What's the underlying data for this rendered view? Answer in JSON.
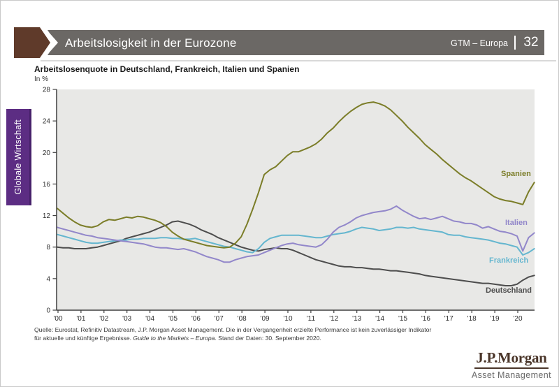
{
  "header": {
    "title": "Arbeitslosigkeit in der Eurozone",
    "edition_label": "GTM – Europa",
    "page_number": "32"
  },
  "sidebar": {
    "tab_label": "Globale Wirtschaft"
  },
  "chart": {
    "title": "Arbeitslosenquote in Deutschland, Frankreich, Italien und Spanien",
    "unit_label": "In %"
  },
  "chart_data": {
    "type": "line",
    "title": "Arbeitslosenquote in Deutschland, Frankreich, Italien und Spanien",
    "ylabel": "In %",
    "ylim": [
      0,
      28
    ],
    "yticks": [
      0,
      4,
      8,
      12,
      16,
      20,
      24,
      28
    ],
    "grid": false,
    "legend_position": "end-of-line-labels",
    "x_start_year": 2000,
    "x_step_years": 0.25,
    "xtick_labels": [
      "'00",
      "'01",
      "'02",
      "'03",
      "'04",
      "'05",
      "'06",
      "'07",
      "'08",
      "'09",
      "'10",
      "'11",
      "'12",
      "'13",
      "'14",
      "'15",
      "'16",
      "'17",
      "'18",
      "'19",
      "'20"
    ],
    "series": [
      {
        "name": "Spanien",
        "color": "#7b7d28",
        "values": [
          12.9,
          12.3,
          11.7,
          11.2,
          10.8,
          10.6,
          10.5,
          10.7,
          11.2,
          11.5,
          11.4,
          11.6,
          11.8,
          11.7,
          11.9,
          11.8,
          11.6,
          11.4,
          11.1,
          10.6,
          9.9,
          9.4,
          9.0,
          8.8,
          8.6,
          8.4,
          8.2,
          8.1,
          8.0,
          7.9,
          8.0,
          8.5,
          9.3,
          10.9,
          12.8,
          14.9,
          17.2,
          17.8,
          18.2,
          18.9,
          19.6,
          20.1,
          20.1,
          20.4,
          20.7,
          21.1,
          21.7,
          22.5,
          23.1,
          23.9,
          24.6,
          25.2,
          25.7,
          26.1,
          26.3,
          26.4,
          26.2,
          25.9,
          25.4,
          24.7,
          24.0,
          23.2,
          22.5,
          21.8,
          21.0,
          20.4,
          19.8,
          19.1,
          18.5,
          17.9,
          17.3,
          16.8,
          16.4,
          15.9,
          15.4,
          14.9,
          14.4,
          14.1,
          13.9,
          13.8,
          13.6,
          13.4,
          15.0,
          16.2
        ]
      },
      {
        "name": "Italien",
        "color": "#9287ca",
        "values": [
          10.5,
          10.3,
          10.1,
          9.9,
          9.7,
          9.5,
          9.4,
          9.2,
          9.1,
          9.0,
          8.9,
          8.8,
          8.7,
          8.6,
          8.5,
          8.4,
          8.2,
          8.0,
          7.9,
          7.9,
          7.8,
          7.7,
          7.8,
          7.6,
          7.4,
          7.1,
          6.8,
          6.6,
          6.4,
          6.1,
          6.1,
          6.4,
          6.6,
          6.8,
          6.9,
          7.0,
          7.3,
          7.6,
          7.9,
          8.2,
          8.4,
          8.5,
          8.3,
          8.2,
          8.1,
          8.0,
          8.3,
          9.0,
          9.9,
          10.5,
          10.8,
          11.2,
          11.7,
          12.0,
          12.2,
          12.4,
          12.5,
          12.6,
          12.8,
          13.2,
          12.7,
          12.3,
          11.9,
          11.6,
          11.7,
          11.5,
          11.7,
          11.9,
          11.6,
          11.3,
          11.2,
          11.0,
          11.0,
          10.8,
          10.4,
          10.6,
          10.3,
          10.0,
          9.9,
          9.7,
          9.4,
          7.5,
          9.2,
          9.8
        ]
      },
      {
        "name": "Frankreich",
        "color": "#64b6cf",
        "values": [
          9.6,
          9.4,
          9.2,
          9.0,
          8.8,
          8.6,
          8.5,
          8.5,
          8.6,
          8.7,
          8.8,
          8.9,
          8.9,
          9.0,
          9.0,
          9.1,
          9.1,
          9.1,
          9.2,
          9.2,
          9.1,
          9.1,
          9.0,
          9.0,
          9.1,
          8.9,
          8.7,
          8.5,
          8.3,
          8.1,
          8.0,
          7.8,
          7.6,
          7.4,
          7.3,
          7.8,
          8.6,
          9.1,
          9.3,
          9.5,
          9.5,
          9.5,
          9.5,
          9.4,
          9.3,
          9.2,
          9.2,
          9.4,
          9.6,
          9.7,
          9.8,
          10.0,
          10.3,
          10.5,
          10.4,
          10.3,
          10.1,
          10.2,
          10.3,
          10.5,
          10.5,
          10.4,
          10.5,
          10.3,
          10.2,
          10.1,
          10.0,
          9.9,
          9.6,
          9.5,
          9.5,
          9.3,
          9.2,
          9.1,
          9.0,
          8.9,
          8.7,
          8.5,
          8.4,
          8.2,
          8.0,
          7.0,
          7.3,
          7.8
        ]
      },
      {
        "name": "Deutschland",
        "color": "#4d4d4d",
        "values": [
          8.0,
          7.9,
          7.9,
          7.8,
          7.8,
          7.8,
          7.9,
          8.0,
          8.2,
          8.4,
          8.6,
          8.8,
          9.1,
          9.3,
          9.5,
          9.7,
          9.9,
          10.2,
          10.5,
          10.8,
          11.2,
          11.3,
          11.1,
          10.9,
          10.6,
          10.2,
          9.9,
          9.6,
          9.2,
          8.9,
          8.6,
          8.3,
          8.0,
          7.8,
          7.6,
          7.5,
          7.7,
          7.8,
          7.9,
          7.8,
          7.8,
          7.6,
          7.3,
          7.0,
          6.7,
          6.4,
          6.2,
          6.0,
          5.8,
          5.6,
          5.5,
          5.5,
          5.4,
          5.4,
          5.3,
          5.2,
          5.2,
          5.1,
          5.0,
          5.0,
          4.9,
          4.8,
          4.7,
          4.6,
          4.4,
          4.3,
          4.2,
          4.1,
          4.0,
          3.9,
          3.8,
          3.7,
          3.6,
          3.5,
          3.4,
          3.4,
          3.3,
          3.2,
          3.1,
          3.1,
          3.3,
          3.8,
          4.2,
          4.4
        ]
      }
    ]
  },
  "footer": {
    "source_line1": "Quelle: Eurostat, Refinitiv Datastream, J.P. Morgan Asset Management. Die in der Vergangenheit erzielte Performance ist kein zuverlässiger Indikator",
    "source_line2_prefix": "für aktuelle und künftige Ergebnisse. ",
    "source_line2_italic": "Guide to the Markets – Europa.",
    "source_line2_suffix": " Stand der Daten: 30. September 2020."
  },
  "logo": {
    "brand": "J.P.Morgan",
    "division": "Asset Management"
  }
}
